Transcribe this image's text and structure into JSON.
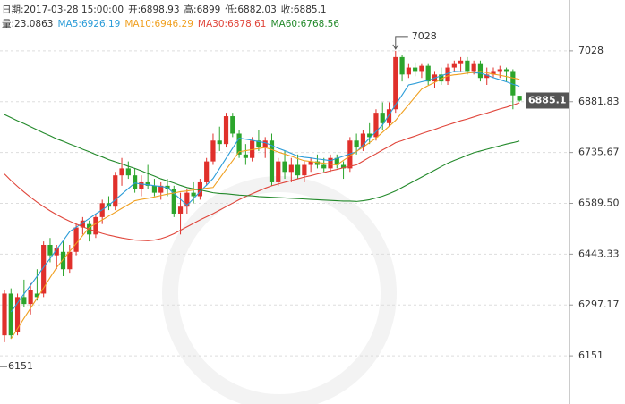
{
  "header": {
    "fields": [
      {
        "label": "日期:",
        "value": "2017-03-28 15:00:00"
      },
      {
        "label": "开:",
        "value": 6898.93
      },
      {
        "label": "高:",
        "value": 6899
      },
      {
        "label": "低:",
        "value": 6882.03
      },
      {
        "label": "收:",
        "value": 6885.1
      },
      {
        "label": "量:",
        "value": 23.0863
      }
    ]
  },
  "chart_data": {
    "type": "candlestick",
    "up_color": "#e0302b",
    "down_color": "#2ca52c",
    "open": [
      6210,
      6330,
      6220,
      6320,
      6300,
      6330,
      6330,
      6470,
      6440,
      6450,
      6400,
      6450,
      6520,
      6530,
      6500,
      6550,
      6590,
      6580,
      6670,
      6690,
      6670,
      6630,
      6650,
      6640,
      6620,
      6640,
      6630,
      6560,
      6580,
      6620,
      6610,
      6650,
      6710,
      6770,
      6760,
      6840,
      6790,
      6730,
      6720,
      6770,
      6750,
      6770,
      6650,
      6710,
      6680,
      6700,
      6670,
      6700,
      6710,
      6700,
      6690,
      6720,
      6700,
      6690,
      6770,
      6750,
      6790,
      6780,
      6850,
      6820,
      6860,
      7010,
      6960,
      6980,
      6970,
      6985,
      6940,
      6960,
      6940,
      6980,
      6990,
      7000,
      6970,
      6990,
      6950,
      6960,
      6970,
      6975,
      6970,
      6898.93
    ],
    "high": [
      6340,
      6345,
      6330,
      6370,
      6360,
      6400,
      6480,
      6490,
      6470,
      6480,
      6470,
      6530,
      6550,
      6540,
      6560,
      6600,
      6610,
      6680,
      6720,
      6710,
      6690,
      6670,
      6700,
      6660,
      6650,
      6660,
      6640,
      6620,
      6630,
      6650,
      6660,
      6720,
      6790,
      6810,
      6850,
      6850,
      6800,
      6760,
      6780,
      6800,
      6780,
      6790,
      6720,
      6740,
      6720,
      6730,
      6710,
      6720,
      6730,
      6720,
      6730,
      6730,
      6710,
      6780,
      6790,
      6800,
      6820,
      6860,
      6880,
      6880,
      7028,
      7015,
      6990,
      6995,
      6990,
      6990,
      6970,
      6980,
      6990,
      7000,
      7010,
      7010,
      7000,
      7000,
      6980,
      6980,
      6985,
      6980,
      6975,
      6899
    ],
    "low": [
      6190,
      6200,
      6210,
      6290,
      6270,
      6310,
      6320,
      6420,
      6400,
      6380,
      6390,
      6440,
      6500,
      6480,
      6490,
      6530,
      6570,
      6570,
      6640,
      6660,
      6620,
      6610,
      6630,
      6610,
      6600,
      6610,
      6550,
      6500,
      6560,
      6590,
      6600,
      6640,
      6700,
      6740,
      6750,
      6780,
      6720,
      6700,
      6710,
      6740,
      6720,
      6640,
      6640,
      6660,
      6650,
      6660,
      6650,
      6680,
      6690,
      6680,
      6680,
      6690,
      6660,
      6680,
      6730,
      6740,
      6760,
      6770,
      6800,
      6810,
      6850,
      6940,
      6950,
      6955,
      6950,
      6930,
      6920,
      6930,
      6930,
      6970,
      6970,
      6960,
      6960,
      6940,
      6930,
      6950,
      6950,
      6940,
      6860,
      6882.03
    ],
    "close": [
      6330,
      6210,
      6320,
      6300,
      6340,
      6320,
      6470,
      6440,
      6460,
      6400,
      6450,
      6520,
      6540,
      6500,
      6550,
      6590,
      6580,
      6670,
      6690,
      6670,
      6630,
      6650,
      6640,
      6620,
      6640,
      6630,
      6560,
      6580,
      6620,
      6610,
      6650,
      6710,
      6770,
      6760,
      6840,
      6790,
      6730,
      6720,
      6770,
      6750,
      6770,
      6650,
      6710,
      6680,
      6700,
      6670,
      6700,
      6710,
      6700,
      6690,
      6720,
      6700,
      6690,
      6770,
      6750,
      6790,
      6780,
      6850,
      6820,
      6860,
      7010,
      6960,
      6980,
      6970,
      6985,
      6940,
      6960,
      6940,
      6980,
      6990,
      7000,
      6970,
      6990,
      6950,
      6960,
      6970,
      6975,
      6970,
      6900,
      6885.1
    ],
    "series": [
      {
        "label": "MA5:",
        "last": 6926.19,
        "color": "#2b9cd8",
        "values": [
          null,
          6277,
          6303,
          6329,
          6354,
          6380,
          6406,
          6431,
          6457,
          6482,
          6508,
          6521,
          6533,
          6546,
          6559,
          6571,
          6584,
          6600,
          6616,
          6632,
          6648,
          6645,
          6643,
          6640,
          6638,
          6635,
          6618,
          6601,
          6584,
          6603,
          6623,
          6642,
          6661,
          6690,
          6719,
          6748,
          6777,
          6774,
          6771,
          6767,
          6764,
          6756,
          6748,
          6741,
          6733,
          6725,
          6722,
          6720,
          6717,
          6715,
          6712,
          6719,
          6725,
          6732,
          6738,
          6757,
          6777,
          6796,
          6815,
          6844,
          6873,
          6901,
          6930,
          6934,
          6939,
          6943,
          6950,
          6956,
          6963,
          6969,
          6968,
          6967,
          6965,
          6964,
          6958,
          6951,
          6945,
          6939,
          6932,
          6926.19
        ]
      },
      {
        "label": "MA10:",
        "last": 6946.29,
        "color": "#f0a020",
        "values": [
          null,
          6200,
          6229,
          6259,
          6288,
          6317,
          6346,
          6376,
          6405,
          6428,
          6451,
          6474,
          6497,
          6520,
          6531,
          6542,
          6553,
          6564,
          6575,
          6586,
          6597,
          6601,
          6604,
          6608,
          6612,
          6616,
          6619,
          6623,
          6625,
          6628,
          6630,
          6633,
          6635,
          6661,
          6687,
          6712,
          6738,
          6741,
          6744,
          6747,
          6750,
          6744,
          6737,
          6731,
          6725,
          6718,
          6712,
          6710,
          6707,
          6705,
          6702,
          6700,
          6713,
          6726,
          6739,
          6751,
          6764,
          6777,
          6794,
          6811,
          6828,
          6851,
          6873,
          6896,
          6918,
          6928,
          6937,
          6947,
          6956,
          6959,
          6961,
          6964,
          6966,
          6969,
          6965,
          6961,
          6958,
          6954,
          6950,
          6946.29
        ]
      },
      {
        "label": "MA30:",
        "last": 6878.61,
        "color": "#e0453a",
        "values": [
          6674,
          6655,
          6638,
          6622,
          6607,
          6593,
          6580,
          6568,
          6557,
          6547,
          6538,
          6530,
          6522,
          6515,
          6509,
          6503,
          6498,
          6494,
          6490,
          6487,
          6484,
          6483,
          6482,
          6484,
          6488,
          6494,
          6502,
          6512,
          6522,
          6532,
          6542,
          6551,
          6560,
          6570,
          6580,
          6590,
          6600,
          6609,
          6617,
          6625,
          6633,
          6640,
          6645,
          6650,
          6655,
          6660,
          6665,
          6669,
          6674,
          6678,
          6683,
          6687,
          6692,
          6696,
          6700,
          6711,
          6722,
          6732,
          6743,
          6753,
          6764,
          6770,
          6777,
          6783,
          6790,
          6796,
          6802,
          6809,
          6815,
          6821,
          6827,
          6832,
          6838,
          6844,
          6849,
          6855,
          6861,
          6866,
          6872,
          6878.61
        ]
      },
      {
        "label": "MA60:",
        "last": 6768.56,
        "color": "#22892a",
        "values": [
          6845,
          6836,
          6827,
          6819,
          6810,
          6801,
          6792,
          6784,
          6775,
          6768,
          6760,
          6753,
          6745,
          6738,
          6730,
          6723,
          6715,
          6709,
          6703,
          6696,
          6690,
          6683,
          6675,
          6668,
          6660,
          6654,
          6648,
          6641,
          6635,
          6631,
          6628,
          6624,
          6620,
          6618,
          6617,
          6615,
          6613,
          6612,
          6611,
          6609,
          6608,
          6607,
          6606,
          6605,
          6604,
          6603,
          6602,
          6601,
          6600,
          6599,
          6598,
          6597,
          6596,
          6596,
          6595,
          6597,
          6600,
          6605,
          6610,
          6617,
          6625,
          6635,
          6645,
          6655,
          6665,
          6675,
          6685,
          6695,
          6705,
          6713,
          6720,
          6728,
          6735,
          6740,
          6745,
          6750,
          6755,
          6760,
          6764,
          6768.56
        ]
      }
    ],
    "annotations": {
      "high": 7028,
      "low": 6151
    },
    "ylim": [
      6012.5,
      7174.2
    ],
    "yticks": [
      7028,
      6881.83,
      6735.67,
      {
        "value": 6589.5,
        "label": "6589.50"
      },
      6443.33,
      6297.17,
      6151
    ],
    "grid": true
  }
}
